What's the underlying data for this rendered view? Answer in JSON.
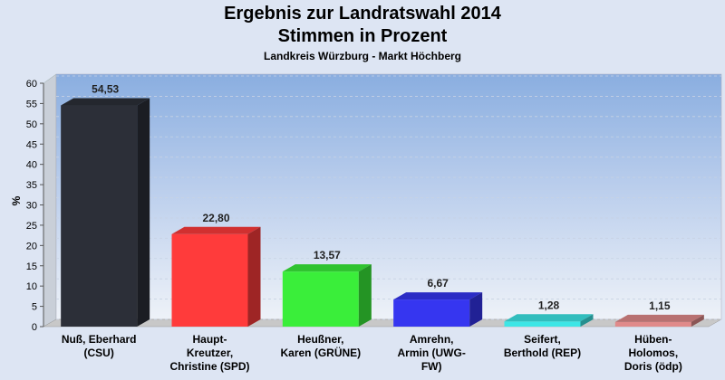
{
  "chart_data": {
    "type": "bar",
    "title": "Ergebnis zur Landratswahl 2014",
    "subtitle": "Stimmen in Prozent",
    "subtitle2": "Landkreis Würzburg - Markt Höchberg",
    "ylabel": "%",
    "xlabel": "",
    "ylim": [
      0,
      60
    ],
    "yticks": [
      0,
      5,
      10,
      15,
      20,
      25,
      30,
      35,
      40,
      45,
      50,
      55,
      60
    ],
    "grid": true,
    "categories": [
      [
        "Nuß, Eberhard",
        "(CSU)"
      ],
      [
        "Haupt-",
        "Kreutzer,",
        "Christine (SPD)"
      ],
      [
        "Heußner,",
        "Karen (GRÜNE)"
      ],
      [
        "Amrehn,",
        "Armin (UWG-",
        "FW)"
      ],
      [
        "Seifert,",
        "Berthold (REP)"
      ],
      [
        "Hüben-",
        "Holomos,",
        "Doris (ödp)"
      ]
    ],
    "values": [
      54.53,
      22.8,
      13.57,
      6.67,
      1.28,
      1.15
    ],
    "value_labels": [
      "54,53",
      "22,80",
      "13,57",
      "6,67",
      "1,28",
      "1,15"
    ],
    "colors": [
      "#2c2f38",
      "#ff3b3b",
      "#3aee3a",
      "#3636f0",
      "#3de6e6",
      "#e08a8a"
    ]
  }
}
